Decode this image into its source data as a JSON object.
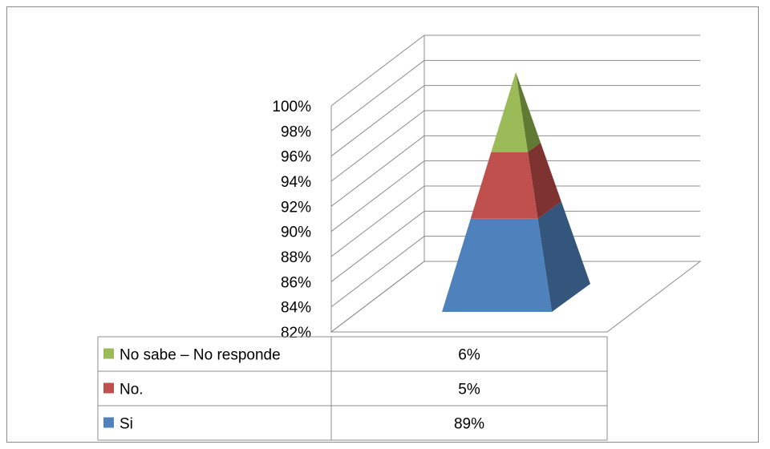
{
  "chart_data": {
    "type": "bar",
    "shape": "3d-pyramid-stacked-100",
    "title": "",
    "xlabel": "",
    "ylabel": "",
    "ylim": [
      82,
      100
    ],
    "y_ticks": [
      "82%",
      "84%",
      "86%",
      "88%",
      "90%",
      "92%",
      "94%",
      "96%",
      "98%",
      "100%"
    ],
    "grid": true,
    "legend": "in data table below chart",
    "series": [
      {
        "name": "No sabe – No responde",
        "value": 6,
        "label": "6%",
        "color": "#9BBB59",
        "dark": "#607A33"
      },
      {
        "name": "No.",
        "value": 5,
        "label": "5%",
        "color": "#C0504D",
        "dark": "#7E3331"
      },
      {
        "name": "Si",
        "value": 89,
        "label": "89%",
        "color": "#4F81BD",
        "dark": "#34557C"
      }
    ]
  }
}
